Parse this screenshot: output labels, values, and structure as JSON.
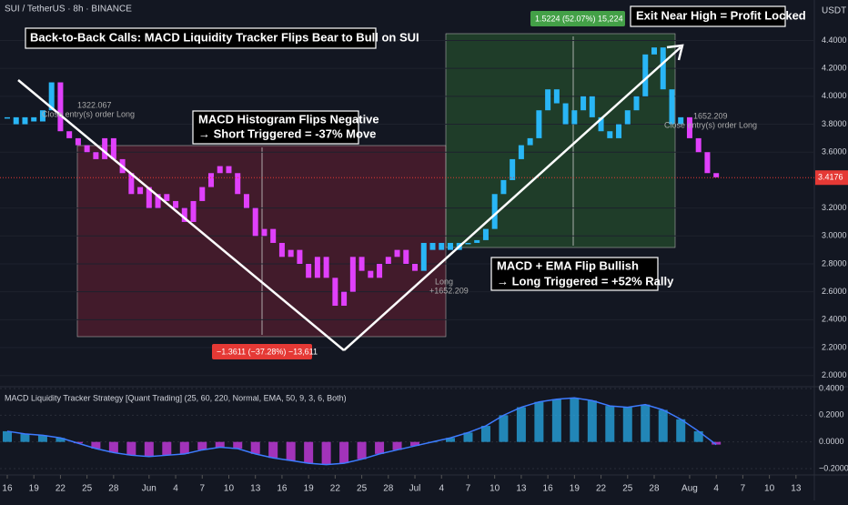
{
  "header": {
    "symbol": "SUI / TetherUS · 8h · BINANCE",
    "currency": "USDT"
  },
  "annotations": {
    "title": "Back-to-Back Calls: MACD Liquidity Tracker Flips Bear to Bull on SUI",
    "short_1": "MACD Histogram Flips Negative",
    "short_2": "→ Short Triggered = -37% Move",
    "long_1": "MACD + EMA Flip Bullish",
    "long_2": "→ Long Triggered = +52% Rally",
    "exit": "Exit Near High = Profit Locked",
    "short_range": "−1.3611 (−37.28%) −13,611",
    "long_range": "1.5224 (52.07%) 15,224",
    "entry_1_value": "1322.067",
    "entry_1_text": "Close entry(s) order Long",
    "long_tag": "Long",
    "long_value": "+1652.209",
    "exit_value": "1652.209",
    "exit_text": "Close entry(s) order Long"
  },
  "chart_data": [
    {
      "type": "candlestick",
      "last_price": 3.4176,
      "xlim": [
        -0.82,
        91.07
      ],
      "ylim": [
        1.92,
        4.69
      ],
      "xticks": [
        {
          "value": 0,
          "label": "16"
        },
        {
          "value": 3,
          "label": "19"
        },
        {
          "value": 6,
          "label": "22"
        },
        {
          "value": 9,
          "label": "25"
        },
        {
          "value": 12,
          "label": "28"
        },
        {
          "value": 16,
          "label": "Jun"
        },
        {
          "value": 19,
          "label": "4"
        },
        {
          "value": 22,
          "label": "7"
        },
        {
          "value": 25,
          "label": "10"
        },
        {
          "value": 28,
          "label": "13"
        },
        {
          "value": 31,
          "label": "16"
        },
        {
          "value": 34,
          "label": "19"
        },
        {
          "value": 37,
          "label": "22"
        },
        {
          "value": 40,
          "label": "25"
        },
        {
          "value": 43,
          "label": "28"
        },
        {
          "value": 46,
          "label": "Jul"
        },
        {
          "value": 49,
          "label": "4"
        },
        {
          "value": 52,
          "label": "7"
        },
        {
          "value": 55,
          "label": "10"
        },
        {
          "value": 58,
          "label": "13"
        },
        {
          "value": 61,
          "label": "16"
        },
        {
          "value": 64,
          "label": "19"
        },
        {
          "value": 67,
          "label": "22"
        },
        {
          "value": 70,
          "label": "25"
        },
        {
          "value": 73,
          "label": "28"
        },
        {
          "value": 77,
          "label": "Aug"
        },
        {
          "value": 80,
          "label": "4"
        },
        {
          "value": 83,
          "label": "7"
        },
        {
          "value": 86,
          "label": "10"
        },
        {
          "value": 89,
          "label": "13"
        }
      ],
      "yticks": [
        {
          "value": 4.4,
          "label": "4.4000"
        },
        {
          "value": 4.2,
          "label": "4.2000"
        },
        {
          "value": 4.0,
          "label": "4.0000"
        },
        {
          "value": 3.8,
          "label": "3.8000"
        },
        {
          "value": 3.6,
          "label": "3.6000"
        },
        {
          "value": 3.2,
          "label": "3.2000"
        },
        {
          "value": 3.0,
          "label": "3.0000"
        },
        {
          "value": 2.8,
          "label": "2.8000"
        },
        {
          "value": 2.6,
          "label": "2.6000"
        },
        {
          "value": 2.4,
          "label": "2.4000"
        },
        {
          "value": 2.2,
          "label": "2.2000"
        },
        {
          "value": 2.0,
          "label": "2.0000"
        }
      ],
      "x": [
        0,
        1,
        2,
        3,
        4,
        5,
        6,
        7,
        8,
        9,
        10,
        11,
        12,
        13,
        14,
        15,
        16,
        17,
        18,
        19,
        20,
        21,
        22,
        23,
        24,
        25,
        26,
        27,
        28,
        29,
        30,
        31,
        32,
        33,
        34,
        35,
        36,
        37,
        38,
        39,
        40,
        41,
        42,
        43,
        44,
        45,
        46,
        47,
        48,
        49,
        50,
        51,
        52,
        53,
        54,
        55,
        56,
        57,
        58,
        59,
        60,
        61,
        62,
        63,
        64,
        65,
        66,
        67,
        68,
        69,
        70,
        71,
        72,
        73,
        74,
        75,
        76,
        77,
        78,
        79,
        80
      ],
      "series": [
        {
          "color": "#29b6f6",
          "values": [
            3.85,
            3.8,
            3.85,
            3.82,
            3.9,
            4.1,
            null,
            null,
            null,
            null,
            null,
            null,
            null,
            null,
            null,
            null,
            null,
            null,
            null,
            null,
            null,
            null,
            null,
            null,
            null,
            null,
            null,
            null,
            null,
            null,
            null,
            null,
            null,
            null,
            null,
            null,
            null,
            null,
            null,
            null,
            null,
            null,
            null,
            null,
            null,
            null,
            null,
            2.95,
            2.9,
            2.95,
            2.9,
            2.95,
            2.95,
            2.97,
            3.05,
            3.3,
            3.4,
            3.55,
            3.65,
            3.7,
            3.9,
            4.05,
            3.95,
            3.8,
            3.9,
            4.0,
            3.85,
            3.75,
            3.7,
            3.8,
            3.9,
            4.0,
            4.3,
            4.35,
            4.05,
            3.8,
            3.85,
            null,
            null,
            null,
            null
          ]
        },
        {
          "color": "#e040fb",
          "values": [
            null,
            null,
            null,
            null,
            null,
            null,
            3.75,
            3.7,
            3.65,
            3.6,
            3.55,
            3.7,
            3.55,
            3.45,
            3.3,
            3.35,
            3.2,
            3.3,
            3.25,
            3.2,
            3.1,
            3.25,
            3.35,
            3.45,
            3.5,
            3.45,
            3.3,
            3.2,
            3.0,
            3.05,
            2.95,
            2.85,
            2.9,
            2.8,
            2.7,
            2.85,
            2.7,
            2.5,
            2.6,
            2.85,
            2.75,
            2.7,
            2.8,
            2.85,
            2.9,
            2.8,
            2.75,
            null,
            null,
            null,
            null,
            null,
            null,
            null,
            null,
            null,
            null,
            null,
            null,
            null,
            null,
            null,
            null,
            null,
            null,
            null,
            null,
            null,
            null,
            null,
            null,
            null,
            null,
            null,
            null,
            null,
            null,
            3.7,
            3.6,
            3.45,
            3.42
          ]
        }
      ]
    },
    {
      "type": "macd",
      "title": "MACD Liquidity Tracker Strategy [Quant Trading] (25, 60, 220, Normal, EMA, 50, 9, 3, 6, Both)",
      "xlim": [
        -0.82,
        91.07
      ],
      "ylim": [
        -0.248,
        0.414
      ],
      "yticks": [
        {
          "value": 0.4,
          "label": "0.4000"
        },
        {
          "value": 0.2,
          "label": "0.2000"
        },
        {
          "value": 0,
          "label": "0.0000"
        },
        {
          "value": -0.2,
          "label": "−0.2000"
        }
      ],
      "x": [
        0,
        2,
        4,
        6,
        8,
        10,
        12,
        14,
        16,
        18,
        20,
        22,
        24,
        26,
        28,
        30,
        32,
        34,
        36,
        38,
        40,
        42,
        44,
        46,
        48,
        50,
        52,
        54,
        56,
        58,
        60,
        62,
        64,
        66,
        68,
        70,
        72,
        74,
        76,
        78,
        80
      ],
      "values": [
        0.08,
        0.06,
        0.05,
        0.03,
        -0.01,
        -0.05,
        -0.08,
        -0.1,
        -0.11,
        -0.1,
        -0.09,
        -0.06,
        -0.04,
        -0.05,
        -0.09,
        -0.12,
        -0.14,
        -0.16,
        -0.17,
        -0.16,
        -0.13,
        -0.09,
        -0.06,
        -0.03,
        0.0,
        0.03,
        0.07,
        0.12,
        0.2,
        0.26,
        0.3,
        0.32,
        0.33,
        0.31,
        0.27,
        0.26,
        0.28,
        0.24,
        0.17,
        0.08,
        -0.02
      ],
      "line_color": "#3d7bff",
      "up_color": "#29b6f6",
      "down_color": "#e040fb"
    }
  ]
}
